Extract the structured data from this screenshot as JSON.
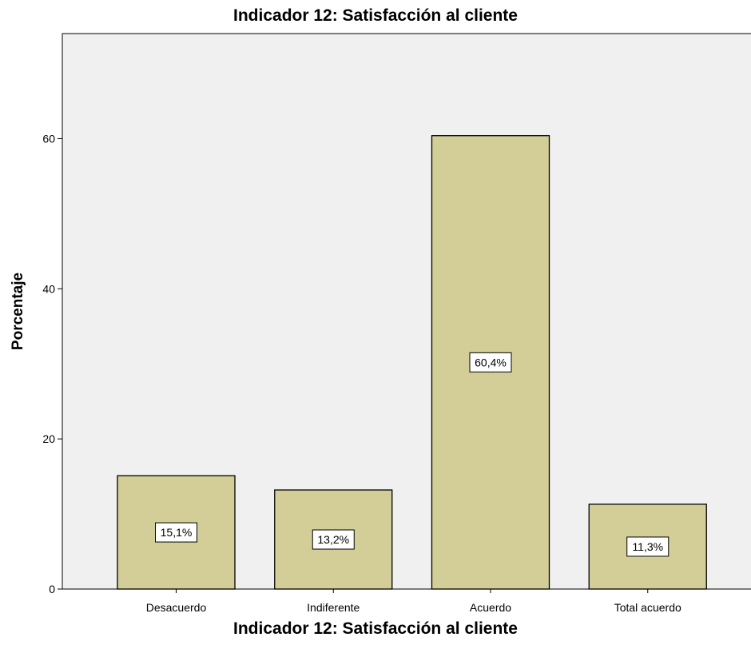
{
  "chart_data": {
    "type": "bar",
    "title": "Indicador 12: Satisfacción al cliente",
    "xlabel": "Indicador 12: Satisfacción al cliente",
    "ylabel": "Porcentaje",
    "categories": [
      "Desacuerdo",
      "Indiferente",
      "Acuerdo",
      "Total acuerdo"
    ],
    "values": [
      15.1,
      13.2,
      60.4,
      11.3
    ],
    "data_labels": [
      "15,1%",
      "13,2%",
      "60,4%",
      "11,3%"
    ],
    "ylim": [
      0,
      74
    ],
    "yticks": [
      0,
      20,
      40,
      60
    ],
    "ytick_labels": [
      "0",
      "20",
      "40",
      "60"
    ],
    "grid": false,
    "colors": {
      "bar_fill": "#d3ce97",
      "plot_background": "#f0f0f0",
      "bar_stroke": "#000000"
    }
  }
}
